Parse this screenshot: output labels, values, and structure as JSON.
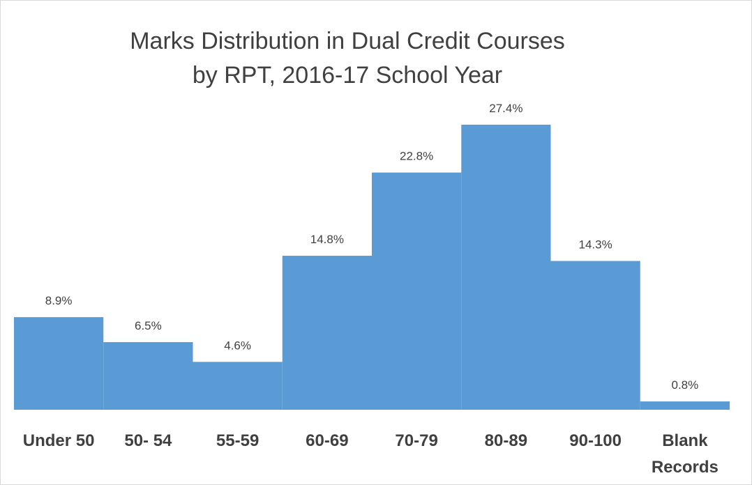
{
  "chart_data": {
    "type": "bar",
    "title": [
      "Marks Distribution in Dual Credit Courses",
      "by RPT, 2016-17 School Year"
    ],
    "categories": [
      "Under 50",
      "50- 54",
      "55-59",
      "60-69",
      "70-79",
      "80-89",
      "90-100",
      "Blank Records"
    ],
    "values": [
      8.9,
      6.5,
      4.6,
      14.8,
      22.8,
      27.4,
      14.3,
      0.8
    ],
    "value_labels": [
      "8.9%",
      "6.5%",
      "4.6%",
      "14.8%",
      "22.8%",
      "27.4%",
      "14.3%",
      "0.8%"
    ],
    "color": "#5b9bd5"
  }
}
